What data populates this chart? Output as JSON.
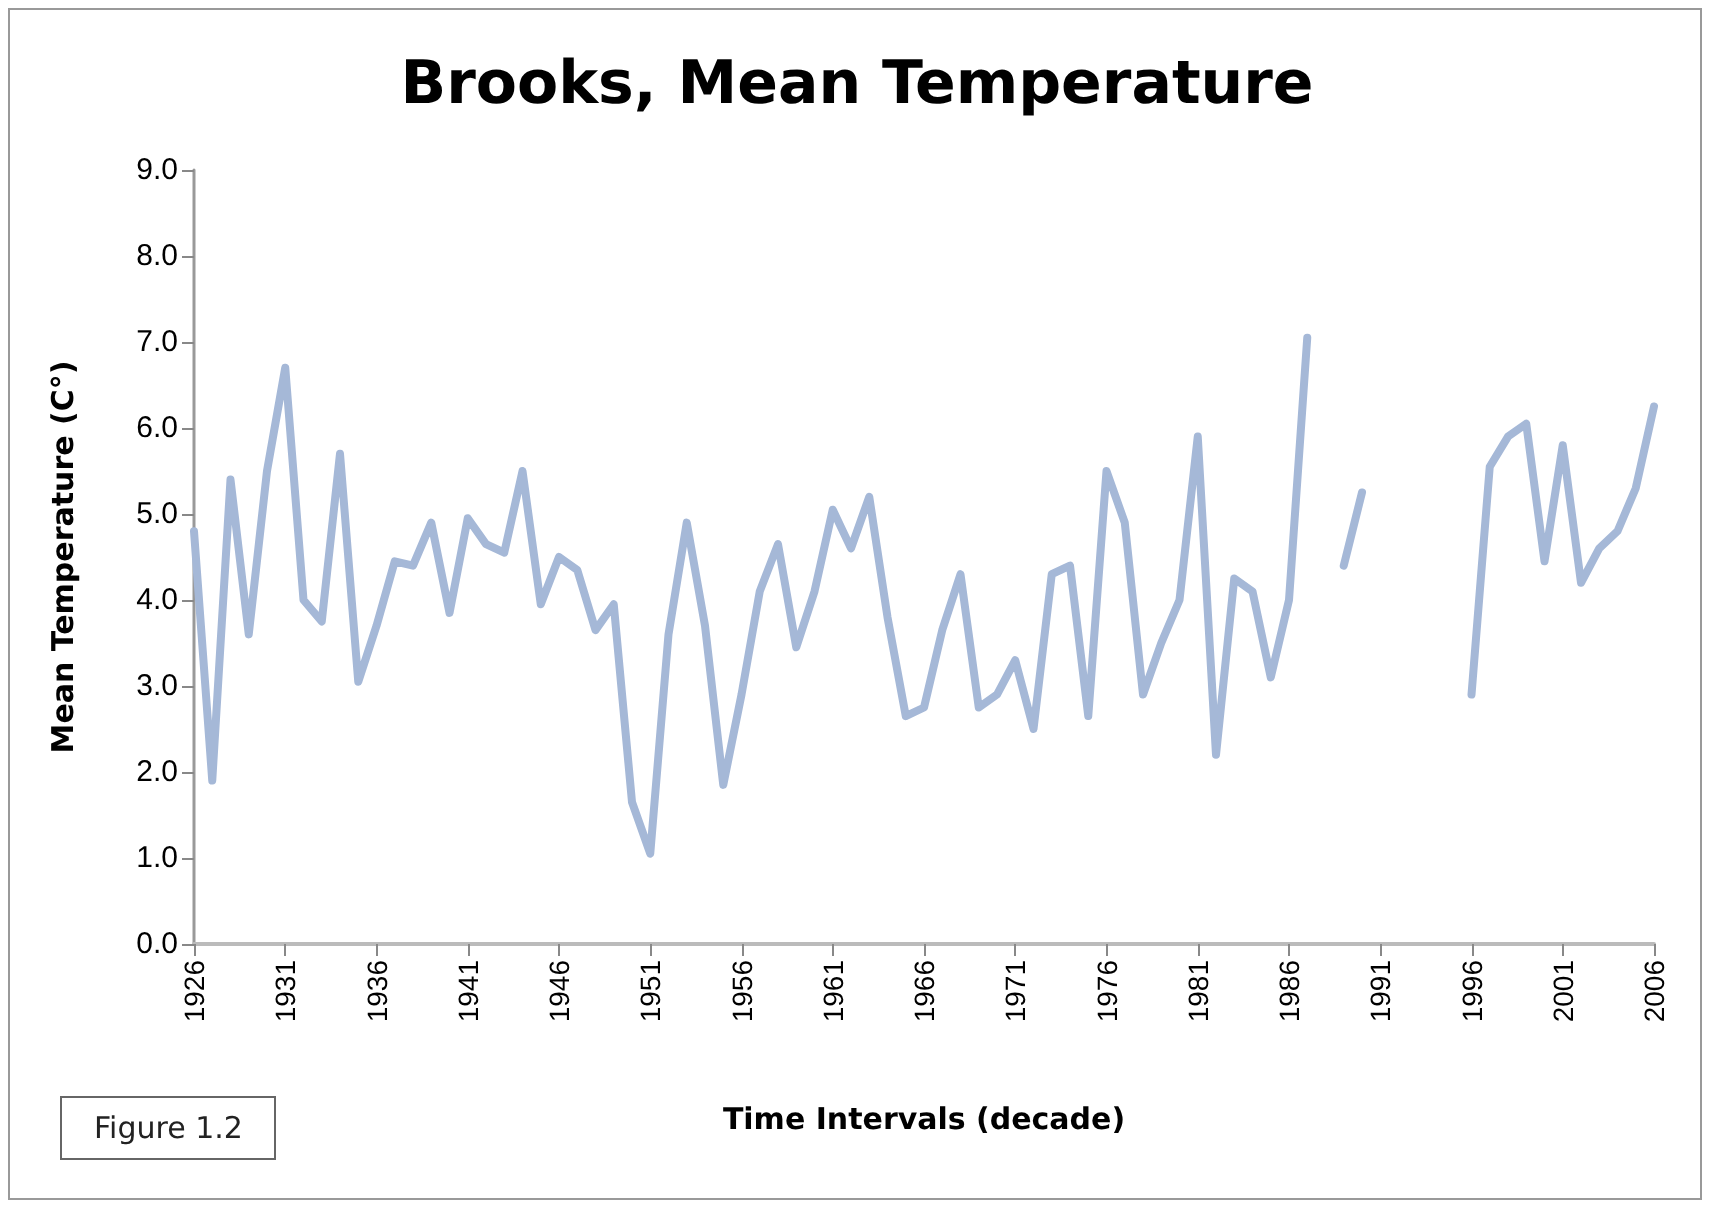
{
  "chart_data": {
    "type": "line",
    "title": "Brooks, Mean Temperature",
    "xlabel": "Time Intervals (decade)",
    "ylabel": "Mean Temperature (C°)",
    "annotations": [
      "Figure 1.2"
    ],
    "categories": [
      "1926",
      null,
      null,
      null,
      null,
      "1931",
      null,
      null,
      null,
      null,
      "1936",
      null,
      null,
      null,
      null,
      "1941",
      null,
      null,
      null,
      null,
      "1946",
      null,
      null,
      null,
      null,
      "1951",
      null,
      null,
      null,
      null,
      "1956",
      null,
      null,
      null,
      null,
      "1961",
      null,
      null,
      null,
      null,
      "1966",
      null,
      null,
      null,
      null,
      "1971",
      null,
      null,
      null,
      null,
      "1976",
      null,
      null,
      null,
      null,
      "1981",
      null,
      null,
      null,
      null,
      "1986",
      null,
      null,
      null,
      null,
      "1991",
      null,
      null,
      null,
      null,
      "1996",
      null,
      null,
      null,
      null,
      "2001",
      null,
      null,
      null,
      null,
      "2006"
    ],
    "series": [
      {
        "color": "#a5b8d7",
        "values": [
          4.8,
          1.9,
          5.4,
          3.6,
          5.5,
          6.7,
          4.0,
          3.75,
          5.7,
          3.05,
          3.7,
          4.45,
          4.4,
          4.9,
          3.85,
          4.95,
          4.65,
          4.55,
          5.5,
          3.95,
          4.5,
          4.35,
          3.65,
          3.95,
          1.65,
          1.05,
          3.6,
          4.9,
          3.7,
          1.85,
          2.9,
          4.1,
          4.65,
          3.45,
          4.1,
          5.05,
          4.6,
          5.2,
          3.8,
          2.65,
          2.75,
          3.65,
          4.3,
          2.75,
          2.9,
          3.3,
          2.5,
          4.3,
          4.4,
          2.65,
          5.5,
          4.9,
          2.9,
          3.5,
          4.0,
          5.9,
          2.2,
          4.25,
          4.1,
          3.1,
          4.0,
          7.05,
          null,
          4.4,
          5.25,
          null,
          null,
          null,
          null,
          null,
          2.9,
          5.55,
          5.9,
          6.05,
          4.45,
          5.8,
          4.2,
          4.6,
          4.8,
          5.3,
          6.25
        ]
      }
    ],
    "ylim": [
      0,
      9
    ],
    "yticks": [
      {
        "value": 0,
        "label": "0.0"
      },
      {
        "value": 1,
        "label": "1.0"
      },
      {
        "value": 2,
        "label": "2.0"
      },
      {
        "value": 3,
        "label": "3.0"
      },
      {
        "value": 4,
        "label": "4.0"
      },
      {
        "value": 5,
        "label": "5.0"
      },
      {
        "value": 6,
        "label": "6.0"
      },
      {
        "value": 7,
        "label": "7.0"
      },
      {
        "value": 8,
        "label": "8.0"
      },
      {
        "value": 9,
        "label": "9.0"
      }
    ],
    "grid": false,
    "marker": "none",
    "line_style": "solid"
  }
}
